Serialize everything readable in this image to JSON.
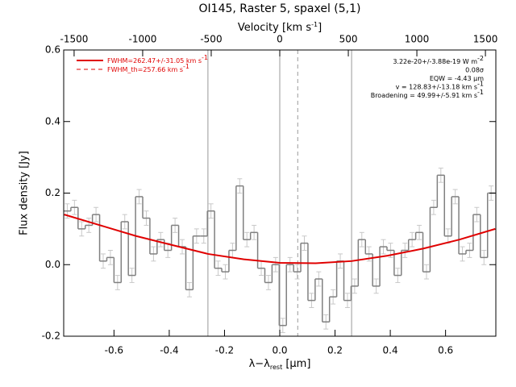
{
  "chart_data": {
    "type": "step",
    "title": "OI145, Raster 5, spaxel (5,1)",
    "xlabel": {
      "main": "λ−λ",
      "sub": "rest",
      "tail": " [μm]"
    },
    "ylabel": "Flux density [Jy]",
    "x2label": {
      "main": "Velocity [km s",
      "sup": "-1",
      "tail": "]"
    },
    "xlim": [
      -0.782,
      0.782
    ],
    "ylim": [
      -0.2,
      0.6
    ],
    "x2lim": [
      -1576,
      1576
    ],
    "xticks": [
      -0.6,
      -0.4,
      -0.2,
      {
        "value": 0,
        "label": "0.0"
      },
      0.2,
      0.4,
      0.6
    ],
    "yticks": [
      -0.2,
      {
        "value": 0,
        "label": "0.0"
      },
      0.2,
      0.4,
      0.6
    ],
    "x2ticks": [
      -1500,
      -1000,
      -500,
      0,
      500,
      1000,
      1500
    ],
    "bin_start": -0.782,
    "bin_width": 0.026,
    "color": "#808080",
    "error_color": "#c8c8c8",
    "values": [
      0.15,
      0.16,
      0.1,
      0.11,
      0.14,
      0.01,
      0.02,
      -0.05,
      0.12,
      -0.03,
      0.19,
      0.13,
      0.03,
      0.07,
      0.04,
      0.11,
      0.05,
      -0.07,
      0.08,
      0.08,
      0.15,
      -0.01,
      -0.02,
      0.04,
      0.22,
      0.07,
      0.09,
      -0.01,
      -0.05,
      0.0,
      -0.17,
      0.0,
      -0.02,
      0.06,
      -0.1,
      -0.04,
      -0.16,
      -0.09,
      0.01,
      -0.1,
      -0.06,
      0.07,
      0.03,
      -0.06,
      0.05,
      0.04,
      -0.03,
      0.04,
      0.07,
      0.09,
      -0.02,
      0.16,
      0.25,
      0.08,
      0.19,
      0.03,
      0.04,
      0.14,
      0.02,
      0.2
    ],
    "errors": [
      0.02,
      0.02,
      0.02,
      0.02,
      0.02,
      0.02,
      0.02,
      0.02,
      0.02,
      0.02,
      0.02,
      0.02,
      0.02,
      0.02,
      0.02,
      0.02,
      0.02,
      0.02,
      0.02,
      0.02,
      0.02,
      0.02,
      0.02,
      0.02,
      0.02,
      0.02,
      0.02,
      0.02,
      0.02,
      0.02,
      0.02,
      0.02,
      0.02,
      0.02,
      0.02,
      0.02,
      0.02,
      0.02,
      0.02,
      0.02,
      0.02,
      0.02,
      0.02,
      0.02,
      0.02,
      0.02,
      0.02,
      0.02,
      0.02,
      0.02,
      0.02,
      0.02,
      0.02,
      0.02,
      0.02,
      0.02,
      0.02,
      0.02,
      0.02,
      0.02
    ],
    "fit": {
      "color": "#e00000",
      "x": [
        -0.78,
        -0.65,
        -0.52,
        -0.39,
        -0.26,
        -0.13,
        0,
        0.13,
        0.26,
        0.39,
        0.52,
        0.65,
        0.78
      ],
      "y": [
        0.14,
        0.11,
        0.08,
        0.055,
        0.03,
        0.015,
        0.005,
        0.004,
        0.01,
        0.025,
        0.045,
        0.07,
        0.1
      ]
    },
    "vlines": [
      {
        "x": -0.26,
        "style": "solid"
      },
      {
        "x": 0,
        "style": "solid"
      },
      {
        "x": 0.26,
        "style": "solid"
      },
      {
        "x": 0.065,
        "style": "dashed"
      }
    ],
    "legend": [
      {
        "main": "FWHM=262.47+/-31.05 km s",
        "sup": "-1",
        "style": "solid"
      },
      {
        "main": "FWHM_th=257.66 km s",
        "sup": "-1",
        "style": "dashed"
      }
    ],
    "annotations": [
      {
        "main": "3.22e-20+/-3.88e-19 W m",
        "sup": "-2"
      },
      {
        "main": "0.08σ"
      },
      {
        "main": "EQW = -4.43 μm"
      },
      {
        "main": "v = 128.83+/-13.18 km s",
        "sup": "-1"
      },
      {
        "main": "Broadening = 49.99+/-5.91 km s",
        "sup": "-1"
      }
    ]
  }
}
